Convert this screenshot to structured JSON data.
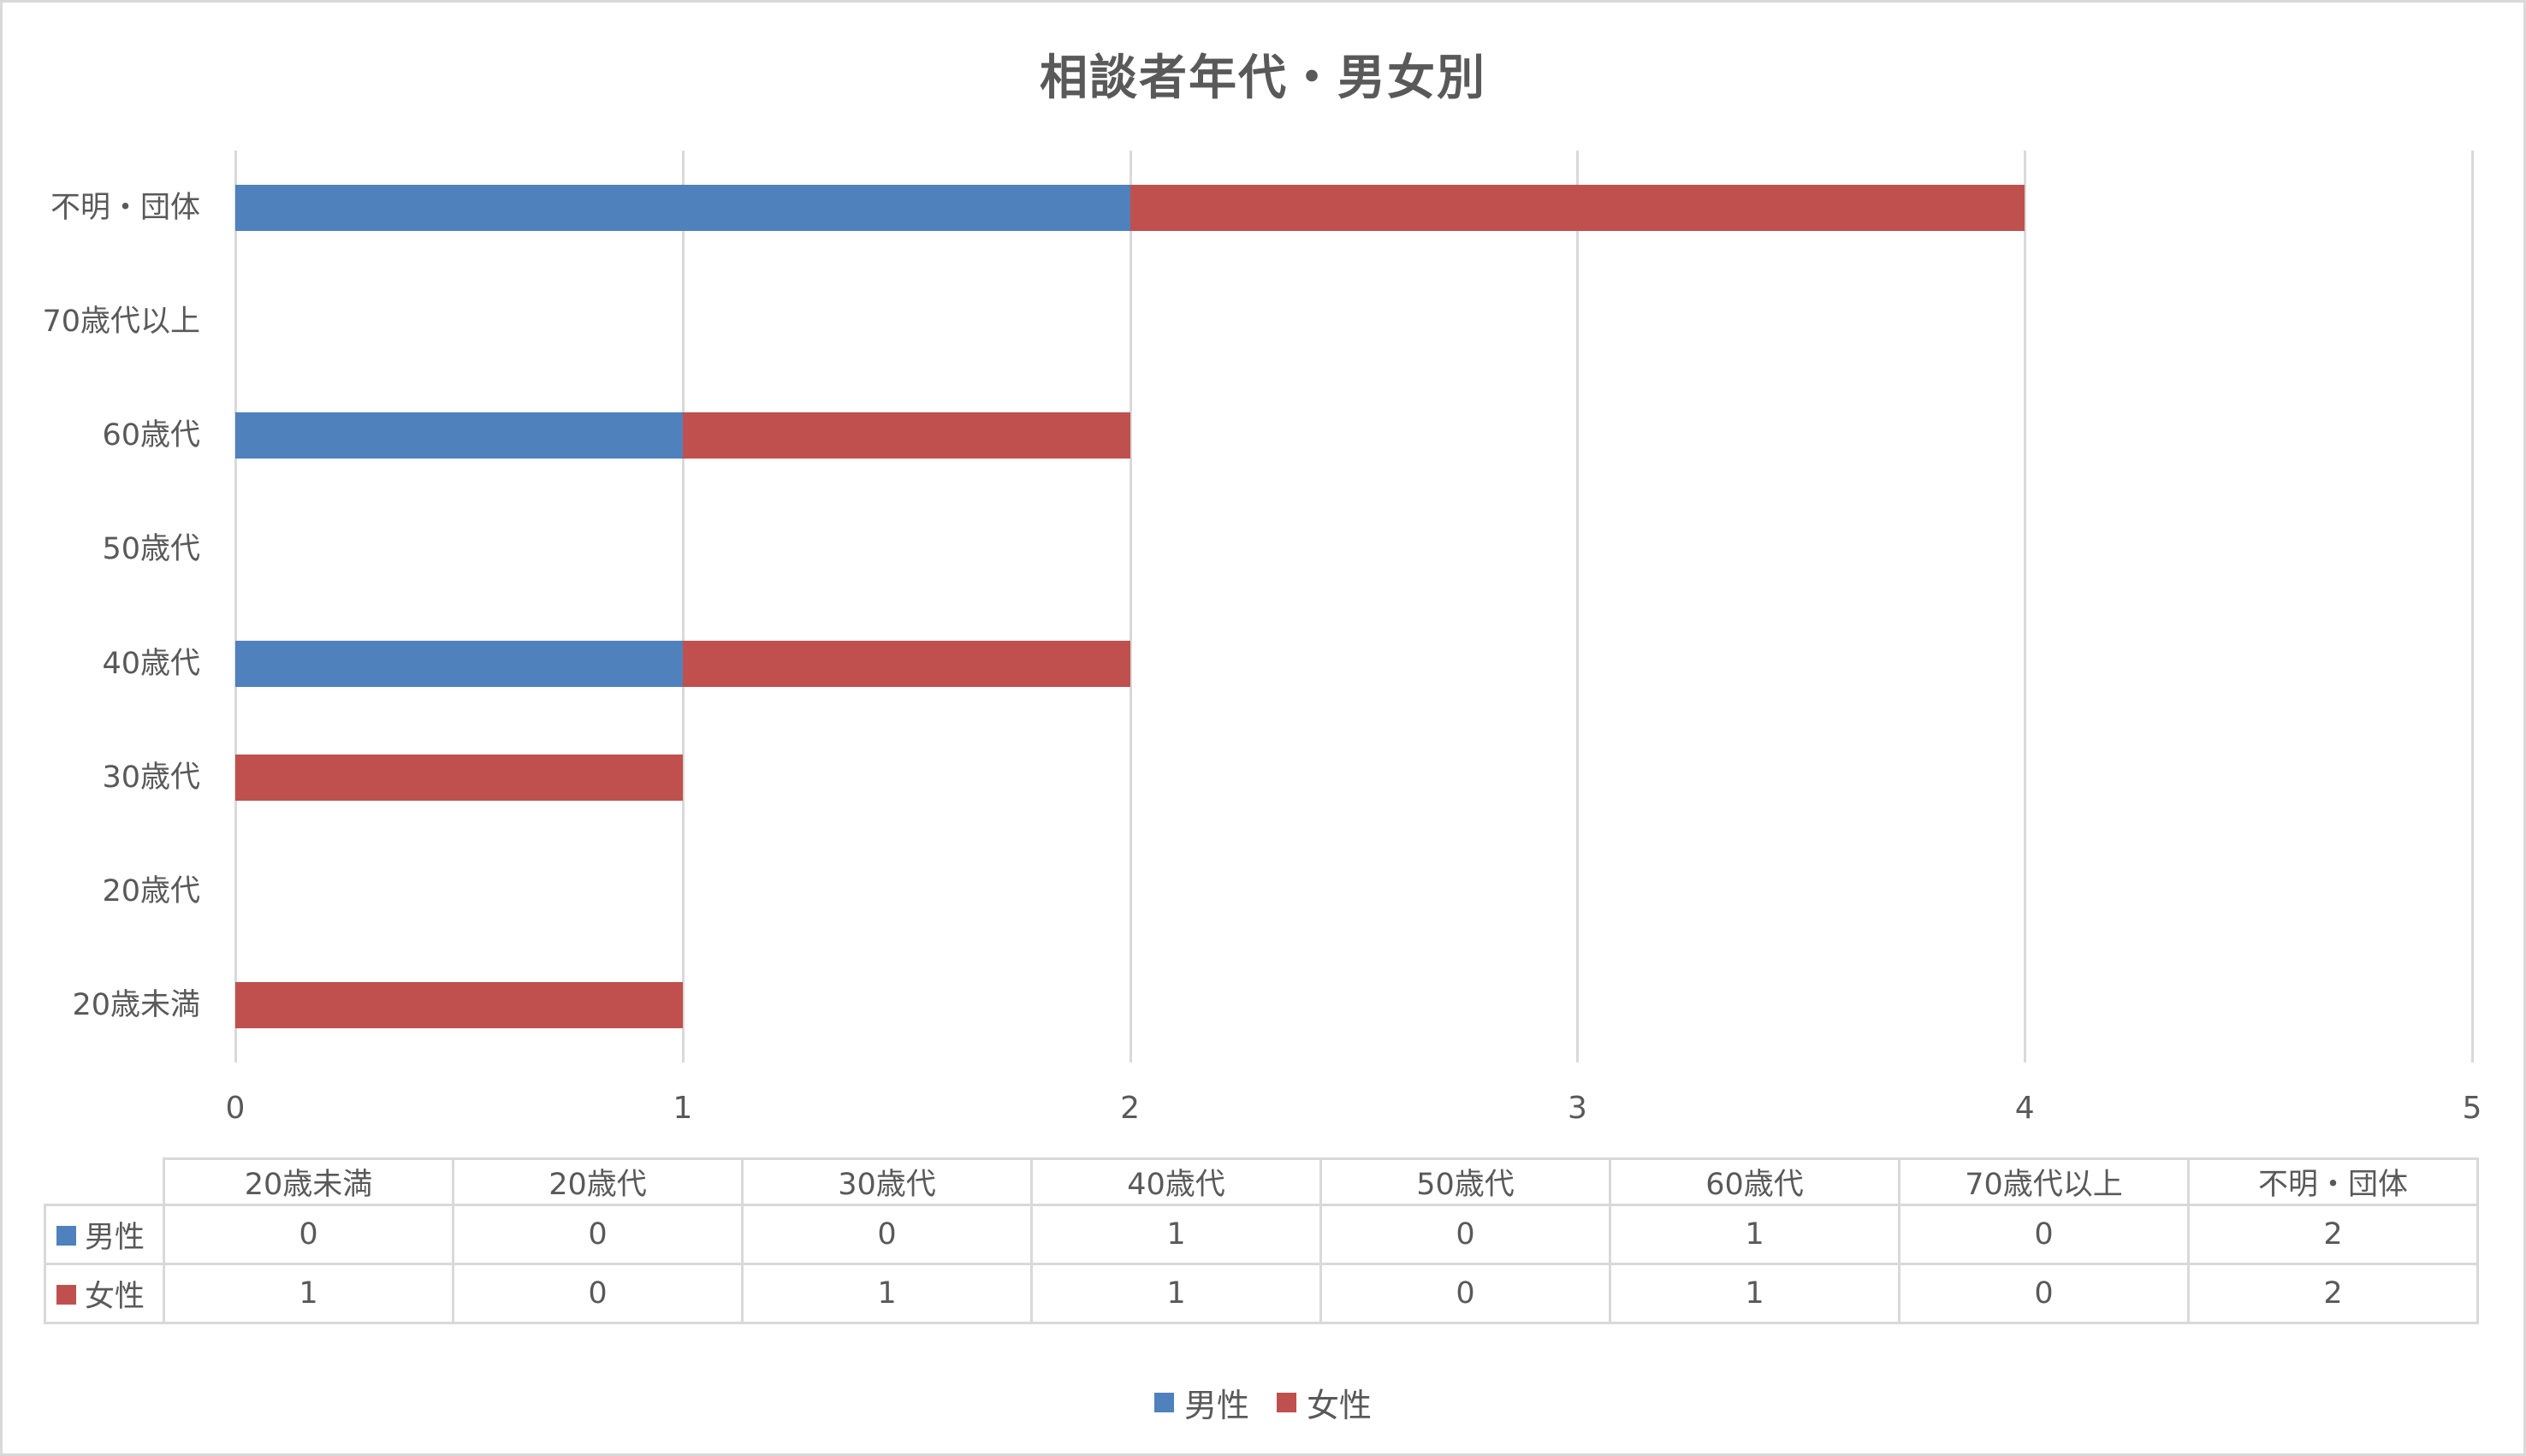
{
  "chart": {
    "title": "相談者年代・男女別",
    "colors": {
      "male": "#4f81bd",
      "female": "#c0504d",
      "grid": "#d9d9d9",
      "text": "#595959"
    }
  },
  "legend": {
    "items": [
      {
        "label": "男性",
        "color": "#4f81bd"
      },
      {
        "label": "女性",
        "color": "#c0504d"
      }
    ]
  },
  "table": {
    "headers": [
      "20歳未満",
      "20歳代",
      "30歳代",
      "40歳代",
      "50歳代",
      "60歳代",
      "70歳代以上",
      "不明・団体"
    ],
    "rows": [
      {
        "label": "男性",
        "color": "#4f81bd",
        "values": [
          0,
          0,
          0,
          1,
          0,
          1,
          0,
          2
        ]
      },
      {
        "label": "女性",
        "color": "#c0504d",
        "values": [
          1,
          0,
          1,
          1,
          0,
          1,
          0,
          2
        ]
      }
    ]
  },
  "chart_data": {
    "type": "bar",
    "orientation": "horizontal",
    "stacked": true,
    "title": "相談者年代・男女別",
    "categories": [
      "20歳未満",
      "20歳代",
      "30歳代",
      "40歳代",
      "50歳代",
      "60歳代",
      "70歳代以上",
      "不明・団体"
    ],
    "series": [
      {
        "name": "男性",
        "color": "#4f81bd",
        "values": [
          0,
          0,
          0,
          1,
          0,
          1,
          0,
          2
        ]
      },
      {
        "name": "女性",
        "color": "#c0504d",
        "values": [
          1,
          0,
          1,
          1,
          0,
          1,
          0,
          2
        ]
      }
    ],
    "xlabel": "",
    "ylabel": "",
    "xlim": [
      0,
      5
    ],
    "xticks": [
      0,
      1,
      2,
      3,
      4,
      5
    ],
    "grid": true,
    "legend_position": "bottom",
    "data_table": true
  }
}
